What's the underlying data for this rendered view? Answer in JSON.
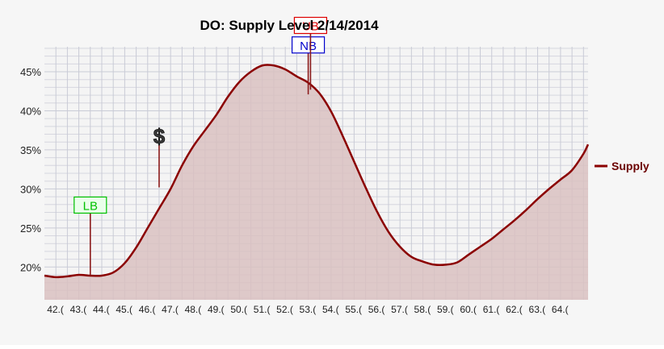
{
  "chart_data": {
    "type": "area",
    "title": "DO: Supply Level 2/14/2014",
    "xlabel": "",
    "ylabel": "",
    "x_tick_labels": [
      "42.(",
      "43.(",
      "44.(",
      "45.(",
      "46.(",
      "47.(",
      "48.(",
      "49.(",
      "50.(",
      "51.(",
      "52.(",
      "53.(",
      "54.(",
      "55.(",
      "56.(",
      "57.(",
      "58.(",
      "59.(",
      "60.(",
      "61.(",
      "62.(",
      "63.(",
      "64.("
    ],
    "y_tick_labels": [
      "20%",
      "25%",
      "30%",
      "35%",
      "40%",
      "45%"
    ],
    "y_ticks": [
      20,
      25,
      30,
      35,
      40,
      45
    ],
    "xlim": [
      41.5,
      65.2
    ],
    "ylim": [
      15.8,
      48.2
    ],
    "grid": true,
    "legend_position": "right",
    "series": [
      {
        "name": "Supply",
        "color": "#8b0000",
        "fill_color": "#d9c1c1",
        "x": [
          41.5,
          42.0,
          42.5,
          43.0,
          43.5,
          44.0,
          44.5,
          45.0,
          45.5,
          46.0,
          46.5,
          47.0,
          47.5,
          48.0,
          48.5,
          49.0,
          49.5,
          50.0,
          50.5,
          51.0,
          51.5,
          52.0,
          52.5,
          53.0,
          53.5,
          54.0,
          54.5,
          55.0,
          55.5,
          56.0,
          56.5,
          57.0,
          57.5,
          58.0,
          58.5,
          59.0,
          59.5,
          60.0,
          60.5,
          61.0,
          61.5,
          62.0,
          62.5,
          63.0,
          63.5,
          64.0,
          64.5,
          65.0,
          65.2
        ],
        "values": [
          18.9,
          18.7,
          18.8,
          19.0,
          18.9,
          18.9,
          19.3,
          20.5,
          22.5,
          25.0,
          27.5,
          30.0,
          33.0,
          35.5,
          37.5,
          39.5,
          41.8,
          43.7,
          45.0,
          45.8,
          45.8,
          45.3,
          44.4,
          43.6,
          42.2,
          39.9,
          36.8,
          33.5,
          30.2,
          27.1,
          24.5,
          22.6,
          21.3,
          20.7,
          20.3,
          20.3,
          20.6,
          21.6,
          22.6,
          23.6,
          24.8,
          26.0,
          27.3,
          28.7,
          30.0,
          31.2,
          32.4,
          34.5,
          35.7
        ]
      }
    ],
    "markers": [
      {
        "label": "LB",
        "x": 43.5,
        "y": 18.9,
        "box_color": "#00c000",
        "fill": "#eaffea",
        "stem_top": 26.9
      },
      {
        "label": "$",
        "x": 46.5,
        "y": 30.2,
        "type": "icon",
        "stem_top": 35.6
      },
      {
        "label": "NB",
        "x": 53.0,
        "y": 42.1,
        "box_color": "#0000cc",
        "fill": "#ffffff",
        "stem_top": 47.4
      },
      {
        "label": "UB",
        "x": 53.1,
        "y": 42.7,
        "box_color": "#dd0000",
        "fill": "#ffffff",
        "stem_top": 49.9
      }
    ]
  }
}
